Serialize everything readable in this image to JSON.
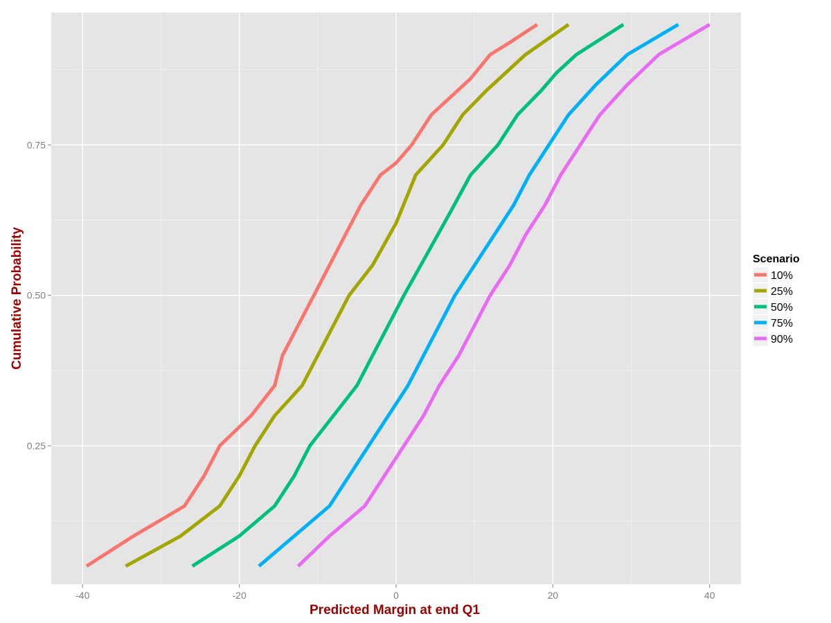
{
  "chart_data": {
    "type": "line",
    "title": "",
    "xlabel": "Predicted Margin at end Q1",
    "ylabel": "Cumulative Probability",
    "xlim": [
      -44,
      44
    ],
    "ylim": [
      0.02,
      0.97
    ],
    "x_ticks": [
      -40,
      -20,
      0,
      20,
      40
    ],
    "x_tick_labels": [
      "-40",
      "-20",
      "0",
      "20",
      "40"
    ],
    "y_ticks": [
      0.25,
      0.5,
      0.75
    ],
    "y_tick_labels": [
      "0.25",
      "0.50",
      "0.75"
    ],
    "grid": true,
    "legend": {
      "title": "Scenario",
      "position": "right"
    },
    "series": [
      {
        "name": "10%",
        "color": "#f8766d",
        "x": [
          -39.5,
          -33.5,
          -27,
          -24.5,
          -22.5,
          -18.5,
          -15.5,
          -14.5,
          -12.5,
          -10.5,
          -8.5,
          -6.5,
          -4.5,
          -2,
          0,
          2,
          4.5,
          7,
          9.5,
          12,
          14.5,
          18
        ],
        "y": [
          0.05,
          0.1,
          0.15,
          0.2,
          0.25,
          0.3,
          0.35,
          0.4,
          0.45,
          0.5,
          0.55,
          0.6,
          0.65,
          0.7,
          0.72,
          0.75,
          0.8,
          0.83,
          0.86,
          0.9,
          0.92,
          0.95
        ]
      },
      {
        "name": "25%",
        "color": "#a3a500",
        "x": [
          -34.5,
          -27.5,
          -22.5,
          -20,
          -18,
          -15.5,
          -12,
          -10,
          -8,
          -6,
          -3,
          0,
          2.5,
          6,
          8.5,
          11.5,
          14,
          16.5,
          22
        ],
        "y": [
          0.05,
          0.1,
          0.15,
          0.2,
          0.25,
          0.3,
          0.35,
          0.4,
          0.45,
          0.5,
          0.55,
          0.62,
          0.7,
          0.75,
          0.8,
          0.84,
          0.87,
          0.9,
          0.95
        ]
      },
      {
        "name": "50%",
        "color": "#00bf7d",
        "x": [
          -26,
          -20,
          -15.5,
          -13,
          -11,
          -8,
          -5,
          -3,
          -1,
          1,
          4,
          7,
          9.5,
          13,
          15.5,
          18.5,
          20.5,
          23,
          29
        ],
        "y": [
          0.05,
          0.1,
          0.15,
          0.2,
          0.25,
          0.3,
          0.35,
          0.4,
          0.45,
          0.5,
          0.57,
          0.64,
          0.7,
          0.75,
          0.8,
          0.84,
          0.87,
          0.9,
          0.95
        ]
      },
      {
        "name": "75%",
        "color": "#00b0f6",
        "x": [
          -17.5,
          -13,
          -8.5,
          -6,
          -3.5,
          -1,
          1.5,
          3.5,
          5.5,
          7.5,
          10,
          12.5,
          15,
          17,
          19.5,
          22,
          25.5,
          29.5,
          36
        ],
        "y": [
          0.05,
          0.1,
          0.15,
          0.2,
          0.25,
          0.3,
          0.35,
          0.4,
          0.45,
          0.5,
          0.55,
          0.6,
          0.65,
          0.7,
          0.75,
          0.8,
          0.85,
          0.9,
          0.95
        ]
      },
      {
        "name": "90%",
        "color": "#e76bf3",
        "x": [
          -12.5,
          -8.5,
          -4,
          -1.5,
          1,
          3.5,
          5.5,
          8,
          10,
          12,
          14.5,
          16.5,
          19,
          21,
          23.5,
          26,
          29.5,
          33.5,
          40
        ],
        "y": [
          0.05,
          0.1,
          0.15,
          0.2,
          0.25,
          0.3,
          0.35,
          0.4,
          0.45,
          0.5,
          0.55,
          0.6,
          0.65,
          0.7,
          0.75,
          0.8,
          0.85,
          0.9,
          0.95
        ]
      }
    ]
  }
}
